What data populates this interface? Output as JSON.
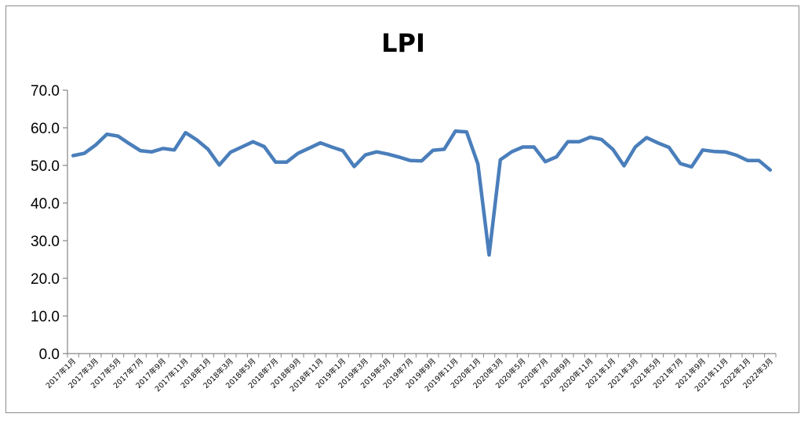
{
  "chart_data": {
    "type": "line",
    "title": "LPI",
    "xlabel": "",
    "ylabel": "",
    "ylim": [
      0,
      70
    ],
    "yticks": [
      "0.0",
      "10.0",
      "20.0",
      "30.0",
      "40.0",
      "50.0",
      "60.0",
      "70.0"
    ],
    "grid": false,
    "legend": "none",
    "colors": {
      "line": "#4a7ebb",
      "axis": "#868686"
    },
    "categories": [
      "2017年1月",
      "2017年2月",
      "2017年3月",
      "2017年4月",
      "2017年5月",
      "2017年6月",
      "2017年7月",
      "2017年8月",
      "2017年9月",
      "2017年10月",
      "2017年11月",
      "2017年12月",
      "2018年1月",
      "2018年2月",
      "2018年3月",
      "2018年4月",
      "2018年5月",
      "2018年6月",
      "2018年7月",
      "2018年8月",
      "2018年9月",
      "2018年10月",
      "2018年11月",
      "2018年12月",
      "2019年1月",
      "2019年2月",
      "2019年3月",
      "2019年4月",
      "2019年5月",
      "2019年6月",
      "2019年7月",
      "2019年8月",
      "2019年9月",
      "2019年10月",
      "2019年11月",
      "2019年12月",
      "2020年1月",
      "2020年2月",
      "2020年3月",
      "2020年4月",
      "2020年5月",
      "2020年6月",
      "2020年7月",
      "2020年8月",
      "2020年9月",
      "2020年10月",
      "2020年11月",
      "2020年12月",
      "2021年1月",
      "2021年2月",
      "2021年3月",
      "2021年4月",
      "2021年5月",
      "2021年6月",
      "2021年7月",
      "2021年8月",
      "2021年9月",
      "2021年10月",
      "2021年11月",
      "2021年12月",
      "2022年1月",
      "2022年2月",
      "2022年3月"
    ],
    "tick_labels": [
      "2017年1月",
      "2017年3月",
      "2017年5月",
      "2017年7月",
      "2017年9月",
      "2017年11月",
      "2018年1月",
      "2018年3月",
      "2018年5月",
      "2018年7月",
      "2018年9月",
      "2018年11月",
      "2019年1月",
      "2019年3月",
      "2019年5月",
      "2019年7月",
      "2019年9月",
      "2019年11月",
      "2020年1月",
      "2020年3月",
      "2020年5月",
      "2020年7月",
      "2020年9月",
      "2020年11月",
      "2021年1月",
      "2021年3月",
      "2021年5月",
      "2021年7月",
      "2021年9月",
      "2021年11月",
      "2022年1月",
      "2022年3月"
    ],
    "series": [
      {
        "values": [
          52.6,
          53.2,
          55.4,
          58.3,
          57.8,
          55.8,
          53.9,
          53.6,
          54.5,
          54.1,
          58.7,
          56.8,
          54.3,
          50.1,
          53.5,
          54.9,
          56.3,
          55.0,
          50.9,
          50.9,
          53.2,
          54.6,
          56.0,
          54.9,
          53.9,
          49.7,
          52.8,
          53.6,
          53.0,
          52.2,
          51.3,
          51.2,
          54.0,
          54.3,
          59.1,
          58.9,
          50.4,
          26.2,
          51.5,
          53.6,
          54.9,
          54.9,
          51.0,
          52.3,
          56.3,
          56.3,
          57.5,
          56.9,
          54.3,
          49.9,
          54.9,
          57.4,
          56.0,
          54.8,
          50.5,
          49.6,
          54.1,
          53.7,
          53.6,
          52.7,
          51.3,
          51.3,
          48.8
        ]
      }
    ]
  }
}
